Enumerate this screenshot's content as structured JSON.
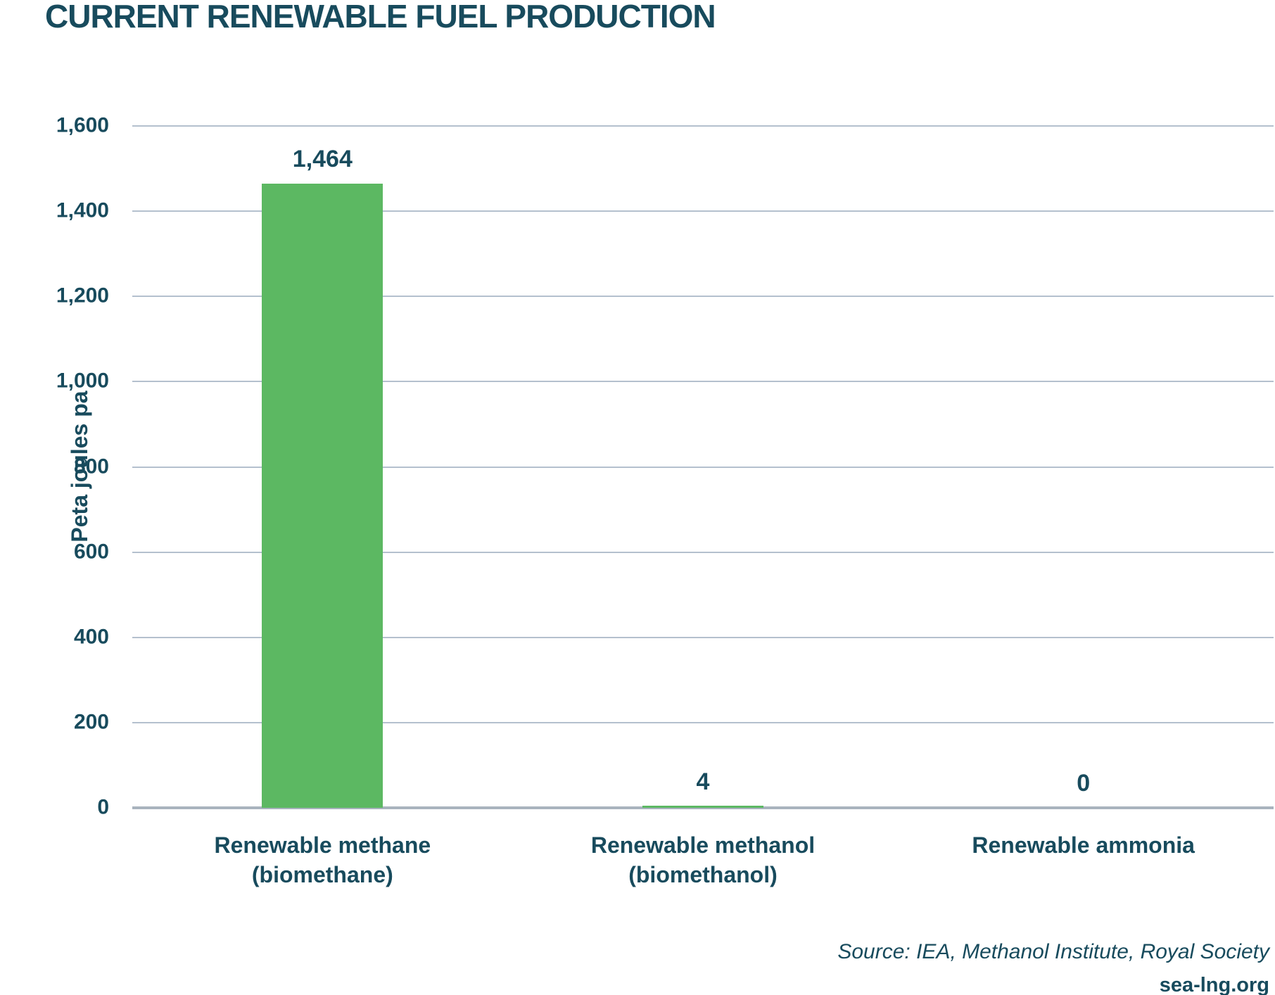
{
  "title": "CURRENT RENEWABLE FUEL PRODUCTION",
  "footer": {
    "source": "Source: IEA, Methanol Institute, Royal Society",
    "website": "sea-lng.org"
  },
  "colors": {
    "bar": "#5CB862",
    "text": "#184B5D",
    "gridline": "#B4C0CE",
    "baseline": "#A9B3BE",
    "background": "#FFFFFF"
  },
  "chart_data": {
    "type": "bar",
    "title": "CURRENT RENEWABLE FUEL PRODUCTION",
    "xlabel": "",
    "ylabel": "Peta joules pa",
    "categories": [
      [
        "Renewable methane",
        "(biomethane)"
      ],
      [
        "Renewable methanol",
        "(biomethanol)"
      ],
      [
        "Renewable ammonia"
      ]
    ],
    "values": [
      1464,
      4,
      0
    ],
    "value_labels": [
      "1,464",
      "4",
      "0"
    ],
    "ylim": [
      0,
      1600
    ],
    "yticks": [
      0,
      200,
      400,
      600,
      800,
      1000,
      1200,
      1400,
      1600
    ],
    "ytick_labels": [
      "0",
      "200",
      "400",
      "600",
      "800",
      "1,000",
      "1,200",
      "1,400",
      "1,600"
    ],
    "grid": "horizontal",
    "legend": "none",
    "bar_color": "#5CB862"
  }
}
